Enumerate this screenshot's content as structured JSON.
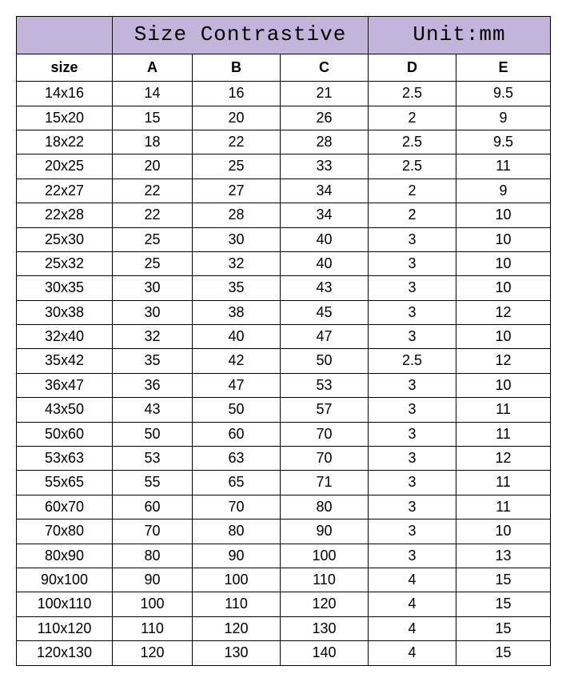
{
  "title": "Size Contrastive",
  "unit_label": "Unit:mm",
  "columns": [
    "size",
    "A",
    "B",
    "C",
    "D",
    "E"
  ],
  "rows": [
    [
      "14x16",
      "14",
      "16",
      "21",
      "2.5",
      "9.5"
    ],
    [
      "15x20",
      "15",
      "20",
      "26",
      "2",
      "9"
    ],
    [
      "18x22",
      "18",
      "22",
      "28",
      "2.5",
      "9.5"
    ],
    [
      "20x25",
      "20",
      "25",
      "33",
      "2.5",
      "11"
    ],
    [
      "22x27",
      "22",
      "27",
      "34",
      "2",
      "9"
    ],
    [
      "22x28",
      "22",
      "28",
      "34",
      "2",
      "10"
    ],
    [
      "25x30",
      "25",
      "30",
      "40",
      "3",
      "10"
    ],
    [
      "25x32",
      "25",
      "32",
      "40",
      "3",
      "10"
    ],
    [
      "30x35",
      "30",
      "35",
      "43",
      "3",
      "10"
    ],
    [
      "30x38",
      "30",
      "38",
      "45",
      "3",
      "12"
    ],
    [
      "32x40",
      "32",
      "40",
      "47",
      "3",
      "10"
    ],
    [
      "35x42",
      "35",
      "42",
      "50",
      "2.5",
      "12"
    ],
    [
      "36x47",
      "36",
      "47",
      "53",
      "3",
      "10"
    ],
    [
      "43x50",
      "43",
      "50",
      "57",
      "3",
      "11"
    ],
    [
      "50x60",
      "50",
      "60",
      "70",
      "3",
      "11"
    ],
    [
      "53x63",
      "53",
      "63",
      "70",
      "3",
      "12"
    ],
    [
      "55x65",
      "55",
      "65",
      "71",
      "3",
      "11"
    ],
    [
      "60x70",
      "60",
      "70",
      "80",
      "3",
      "11"
    ],
    [
      "70x80",
      "70",
      "80",
      "90",
      "3",
      "10"
    ],
    [
      "80x90",
      "80",
      "90",
      "100",
      "3",
      "13"
    ],
    [
      "90x100",
      "90",
      "100",
      "110",
      "4",
      "15"
    ],
    [
      "100x110",
      "100",
      "110",
      "120",
      "4",
      "15"
    ],
    [
      "110x120",
      "110",
      "120",
      "130",
      "4",
      "15"
    ],
    [
      "120x130",
      "120",
      "130",
      "140",
      "4",
      "15"
    ]
  ],
  "colors": {
    "header_bg": "#c3b4d9",
    "border": "#000000",
    "background": "#ffffff"
  }
}
